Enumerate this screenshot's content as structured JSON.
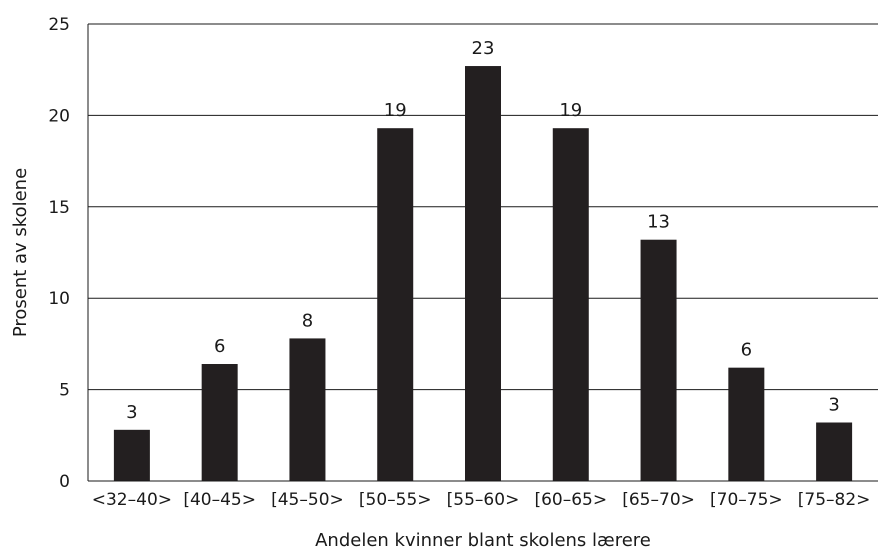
{
  "chart_data": {
    "type": "bar",
    "title": "",
    "xlabel": "Andelen kvinner blant skolens lærere",
    "ylabel": "Prosent av skolene",
    "categories": [
      "<32–40>",
      "[40–45>",
      "[45–50>",
      "[50–55>",
      "[55–60>",
      "[60–65>",
      "[65–70>",
      "[70–75>",
      "[75–82>"
    ],
    "values": [
      2.8,
      6.4,
      7.8,
      19.3,
      22.7,
      19.3,
      13.2,
      6.2,
      3.2
    ],
    "data_labels": [
      "3",
      "6",
      "8",
      "19",
      "23",
      "19",
      "13",
      "6",
      "3"
    ],
    "ylim": [
      0,
      25
    ],
    "yticks": [
      0,
      5,
      10,
      15,
      20,
      25
    ],
    "grid": true,
    "bar_color": "#231f20"
  }
}
